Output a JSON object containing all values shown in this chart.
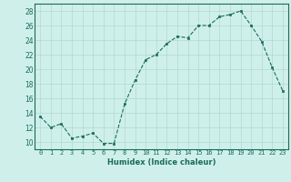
{
  "x": [
    0,
    1,
    2,
    3,
    4,
    5,
    6,
    7,
    8,
    9,
    10,
    11,
    12,
    13,
    14,
    15,
    16,
    17,
    18,
    19,
    20,
    21,
    22,
    23
  ],
  "y": [
    13.5,
    12.0,
    12.5,
    10.5,
    10.8,
    11.2,
    9.8,
    9.8,
    15.2,
    18.5,
    21.3,
    22.0,
    23.5,
    24.5,
    24.3,
    26.0,
    26.0,
    27.2,
    27.5,
    28.0,
    26.0,
    23.8,
    20.2,
    17.0
  ],
  "xlabel": "Humidex (Indice chaleur)",
  "ylim": [
    9,
    29
  ],
  "xlim": [
    -0.5,
    23.5
  ],
  "yticks": [
    10,
    12,
    14,
    16,
    18,
    20,
    22,
    24,
    26,
    28
  ],
  "xticks": [
    0,
    1,
    2,
    3,
    4,
    5,
    6,
    7,
    8,
    9,
    10,
    11,
    12,
    13,
    14,
    15,
    16,
    17,
    18,
    19,
    20,
    21,
    22,
    23
  ],
  "line_color": "#1a6b5a",
  "marker_color": "#1a6b5a",
  "bg_color": "#cff0ea",
  "grid_color": "#b0d8d0",
  "title": ""
}
